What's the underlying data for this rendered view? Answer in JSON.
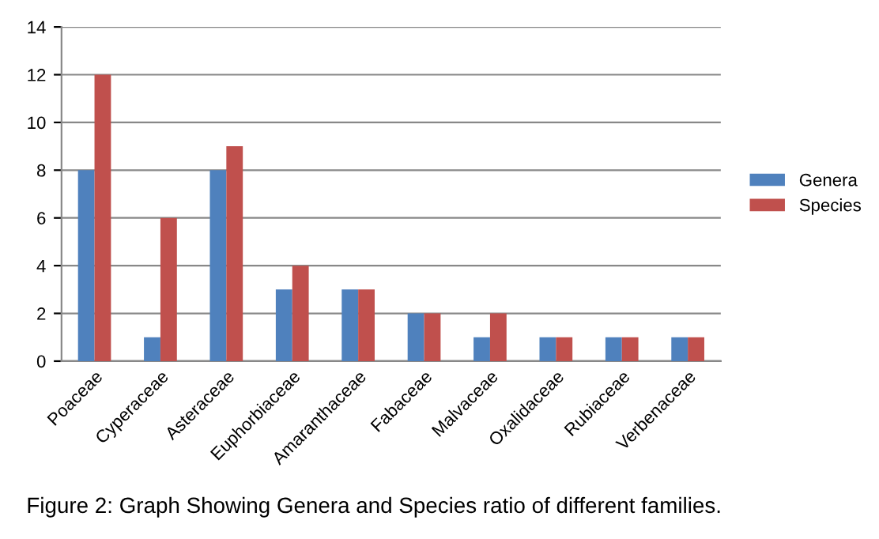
{
  "chart_data": {
    "type": "bar",
    "categories": [
      "Poaceae",
      "Cyperaceae",
      "Asteraceae",
      "Euphorbiaceae",
      "Amaranthaceae",
      "Fabaceae",
      "Malvaceae",
      "Oxalidaceae",
      "Rubiaceae",
      "Verbenaceae"
    ],
    "series": [
      {
        "name": "Genera",
        "color": "#4f81bd",
        "values": [
          8,
          1,
          8,
          3,
          3,
          2,
          1,
          1,
          1,
          1
        ]
      },
      {
        "name": "Species",
        "color": "#c0504d",
        "values": [
          12,
          6,
          9,
          4,
          3,
          2,
          2,
          1,
          1,
          1
        ]
      }
    ],
    "ylim": [
      0,
      14
    ],
    "yticks": [
      0,
      2,
      4,
      6,
      8,
      10,
      12,
      14
    ],
    "grid": "y",
    "legend": "right",
    "annotations": [
      "Figure 2: Graph Showing Genera and Species ratio of different families."
    ]
  }
}
